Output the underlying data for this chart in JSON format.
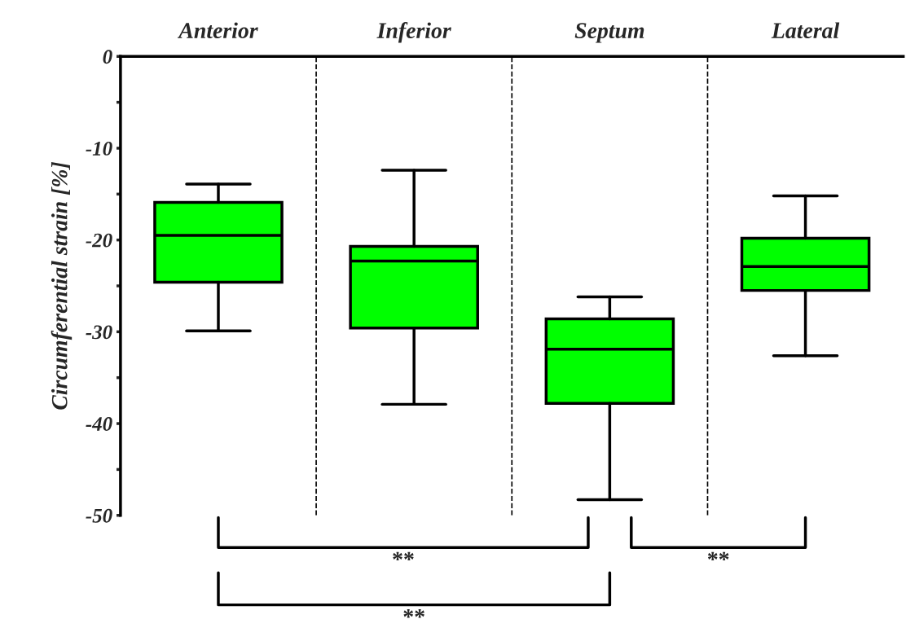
{
  "chart_data": {
    "type": "box",
    "categories": [
      "Anterior",
      "Inferior",
      "Septum",
      "Lateral"
    ],
    "ylabel": "Circumferential strain [%]",
    "color": "#00ff00",
    "boxes": [
      {
        "low": -29.9,
        "q1": -24.6,
        "median": -19.5,
        "q3": -15.9,
        "high": -13.9
      },
      {
        "low": -37.9,
        "q1": -29.6,
        "median": -22.3,
        "q3": -20.7,
        "high": -12.4
      },
      {
        "low": -48.3,
        "q1": -37.8,
        "median": -31.9,
        "q3": -28.6,
        "high": -26.2
      },
      {
        "low": -32.6,
        "q1": -25.5,
        "median": -22.9,
        "q3": -19.8,
        "high": -15.2
      }
    ],
    "ylim": [
      -50,
      0
    ],
    "yticks": [
      -50,
      {
        "value": -45,
        "label": null
      },
      -40,
      {
        "value": -35,
        "label": null
      },
      -30,
      {
        "value": -25,
        "label": null
      },
      -20,
      {
        "value": -15,
        "label": null
      },
      -10,
      {
        "value": -5,
        "label": null
      },
      0
    ],
    "annotations": [
      "**",
      "**",
      "**"
    ],
    "grid": false
  }
}
